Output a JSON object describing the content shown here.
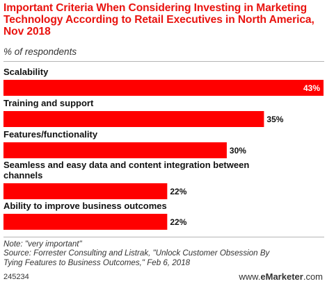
{
  "header": {
    "title": "Important Criteria When Considering Investing in Marketing Technology According to Retail Executives in North America, Nov 2018",
    "subtitle": "% of respondents"
  },
  "colors": {
    "bar": "#ff0000",
    "title": "#e9130f"
  },
  "chart_data": {
    "type": "bar",
    "orientation": "horizontal",
    "categories": [
      [
        "Scalability"
      ],
      [
        "Training and support"
      ],
      [
        "Features/functionality"
      ],
      [
        "Seamless and easy data and content integration between",
        "channels"
      ],
      [
        "Ability to improve business outcomes"
      ]
    ],
    "values": [
      43,
      35,
      30,
      22,
      22
    ],
    "value_labels": [
      "43%",
      "35%",
      "30%",
      "22%",
      "22%"
    ],
    "xlim": [
      0,
      43
    ],
    "grid": false,
    "legend": "none"
  },
  "footer": {
    "note": "Note: \"very important\"",
    "source_line1": "Source: Forrester Consulting and Listrak, \"Unlock Customer Obsession By",
    "source_line2": "Tying Features to Business Outcomes,\" Feb 6, 2018",
    "chart_id": "245234",
    "brand_prefix": "www.",
    "brand_name": "eMarketer",
    "brand_suffix": ".com"
  }
}
